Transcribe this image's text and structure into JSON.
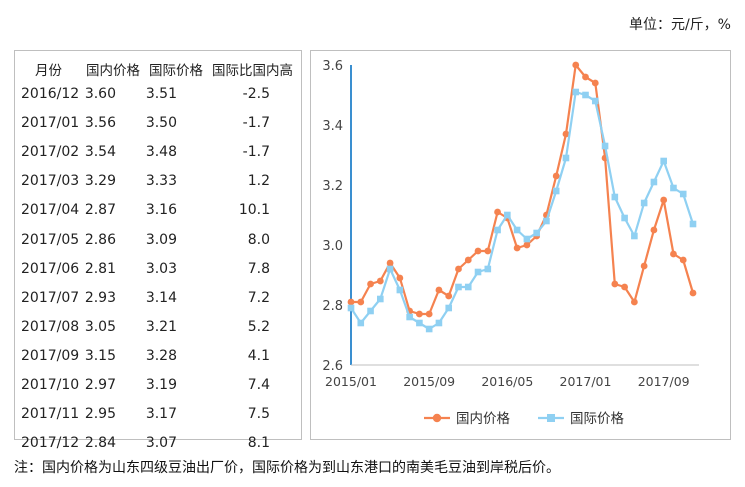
{
  "unit_label": "单位：元/斤，%",
  "table": {
    "headers": [
      "月份",
      "国内价格",
      "国际价格",
      "国际比国内高"
    ],
    "rows": [
      [
        "2016/12",
        "3.60",
        "3.51",
        "-2.5"
      ],
      [
        "2017/01",
        "3.56",
        "3.50",
        "-1.7"
      ],
      [
        "2017/02",
        "3.54",
        "3.48",
        "-1.7"
      ],
      [
        "2017/03",
        "3.29",
        "3.33",
        "1.2"
      ],
      [
        "2017/04",
        "2.87",
        "3.16",
        "10.1"
      ],
      [
        "2017/05",
        "2.86",
        "3.09",
        "8.0"
      ],
      [
        "2017/06",
        "2.81",
        "3.03",
        "7.8"
      ],
      [
        "2017/07",
        "2.93",
        "3.14",
        "7.2"
      ],
      [
        "2017/08",
        "3.05",
        "3.21",
        "5.2"
      ],
      [
        "2017/09",
        "3.15",
        "3.28",
        "4.1"
      ],
      [
        "2017/10",
        "2.97",
        "3.19",
        "7.4"
      ],
      [
        "2017/11",
        "2.95",
        "3.17",
        "7.5"
      ],
      [
        "2017/12",
        "2.84",
        "3.07",
        "8.1"
      ]
    ]
  },
  "note": "注：国内价格为山东四级豆油出厂价，国际价格为到山东港口的南美毛豆油到岸税后价。",
  "chart_data": {
    "type": "line",
    "x": [
      "2015/01",
      "2015/02",
      "2015/03",
      "2015/04",
      "2015/05",
      "2015/06",
      "2015/07",
      "2015/08",
      "2015/09",
      "2015/10",
      "2015/11",
      "2015/12",
      "2016/01",
      "2016/02",
      "2016/03",
      "2016/04",
      "2016/05",
      "2016/06",
      "2016/07",
      "2016/08",
      "2016/09",
      "2016/10",
      "2016/11",
      "2016/12",
      "2017/01",
      "2017/02",
      "2017/03",
      "2017/04",
      "2017/05",
      "2017/06",
      "2017/07",
      "2017/08",
      "2017/09",
      "2017/10",
      "2017/11",
      "2017/12"
    ],
    "x_tick_labels": [
      "2015/01",
      "2015/09",
      "2016/05",
      "2017/01",
      "2017/09"
    ],
    "x_tick_indices": [
      0,
      8,
      16,
      24,
      32
    ],
    "ylim": [
      2.6,
      3.6
    ],
    "yticks": [
      "2.6",
      "2.8",
      "3.0",
      "3.2",
      "3.4",
      "3.6"
    ],
    "series": [
      {
        "name": "国内价格",
        "color": "#f5824f",
        "marker": "circle",
        "values": [
          2.81,
          2.81,
          2.87,
          2.88,
          2.94,
          2.89,
          2.78,
          2.77,
          2.77,
          2.85,
          2.83,
          2.92,
          2.95,
          2.98,
          2.98,
          3.11,
          3.09,
          2.99,
          3.0,
          3.03,
          3.1,
          3.23,
          3.37,
          3.6,
          3.56,
          3.54,
          3.29,
          2.87,
          2.86,
          2.81,
          2.93,
          3.05,
          3.15,
          2.97,
          2.95,
          2.84
        ]
      },
      {
        "name": "国际价格",
        "color": "#8fd0f2",
        "marker": "square",
        "values": [
          2.79,
          2.74,
          2.78,
          2.82,
          2.92,
          2.85,
          2.76,
          2.74,
          2.72,
          2.74,
          2.79,
          2.86,
          2.86,
          2.91,
          2.92,
          3.05,
          3.1,
          3.05,
          3.02,
          3.04,
          3.08,
          3.18,
          3.29,
          3.51,
          3.5,
          3.48,
          3.33,
          3.16,
          3.09,
          3.03,
          3.14,
          3.21,
          3.28,
          3.19,
          3.17,
          3.07
        ]
      }
    ],
    "legend_position": "bottom",
    "grid": false
  }
}
